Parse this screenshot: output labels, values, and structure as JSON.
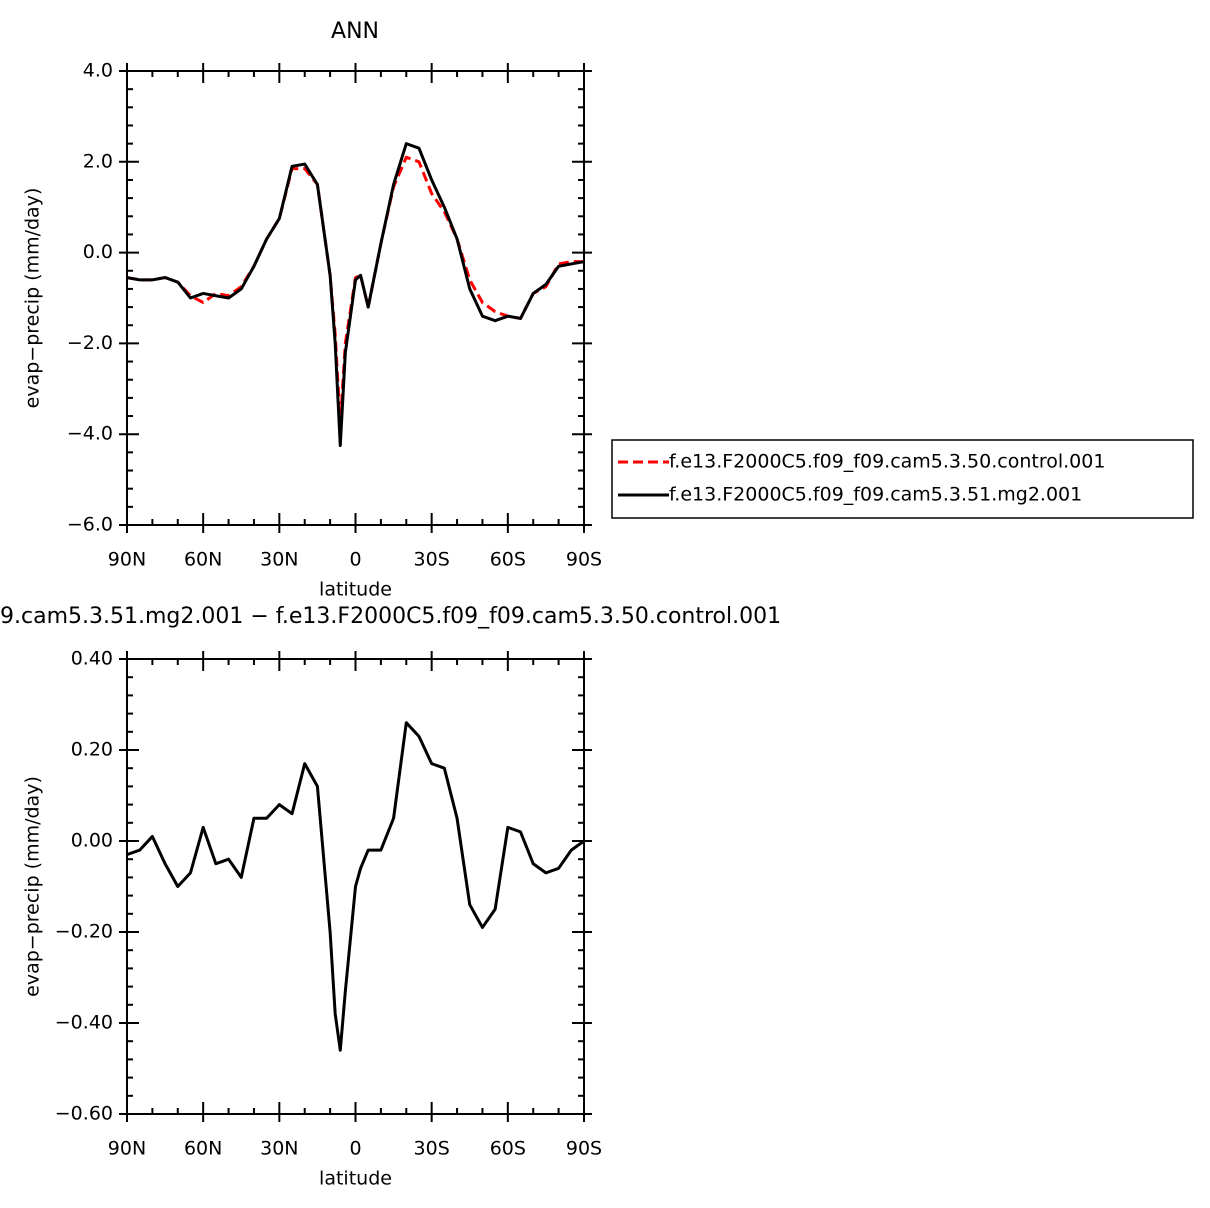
{
  "chart_data": [
    {
      "type": "line",
      "title": "ANN",
      "xlabel": "latitude",
      "ylabel": "evap−precip (mm/day)",
      "x": [
        90,
        85,
        80,
        75,
        70,
        65,
        60,
        55,
        50,
        45,
        40,
        35,
        30,
        25,
        20,
        15,
        10,
        8,
        6,
        4,
        0,
        -2,
        -5,
        -10,
        -15,
        -20,
        -25,
        -30,
        -35,
        -40,
        -45,
        -50,
        -55,
        -60,
        -65,
        -70,
        -75,
        -80,
        -85,
        -90
      ],
      "series": [
        {
          "name": "f.e13.F2000C5.f09_f09.cam5.3.50.control.001",
          "color": "#ff0000",
          "dash": "dashed",
          "values": [
            -0.55,
            -0.6,
            -0.6,
            -0.55,
            -0.65,
            -0.95,
            -1.1,
            -0.9,
            -0.95,
            -0.75,
            -0.3,
            0.3,
            0.75,
            1.85,
            1.85,
            1.5,
            -0.5,
            -1.8,
            -3.8,
            -2.0,
            -0.55,
            -0.5,
            -1.2,
            0.2,
            1.45,
            2.1,
            2.0,
            1.3,
            0.9,
            0.3,
            -0.6,
            -1.1,
            -1.3,
            -1.4,
            -1.45,
            -0.9,
            -0.75,
            -0.25,
            -0.2,
            -0.2
          ]
        },
        {
          "name": "f.e13.F2000C5.f09_f09.cam5.3.51.mg2.001",
          "color": "#000000",
          "dash": "solid",
          "values": [
            -0.55,
            -0.6,
            -0.6,
            -0.55,
            -0.65,
            -1.0,
            -0.9,
            -0.95,
            -1.0,
            -0.8,
            -0.3,
            0.3,
            0.75,
            1.9,
            1.95,
            1.5,
            -0.5,
            -2.0,
            -4.25,
            -2.2,
            -0.6,
            -0.5,
            -1.2,
            0.2,
            1.5,
            2.4,
            2.3,
            1.6,
            1.0,
            0.3,
            -0.8,
            -1.4,
            -1.5,
            -1.4,
            -1.45,
            -0.9,
            -0.7,
            -0.3,
            -0.25,
            -0.2
          ]
        }
      ],
      "xlim": [
        90,
        -90
      ],
      "xticks": [
        {
          "value": 90,
          "label": "90N"
        },
        {
          "value": 60,
          "label": "60N"
        },
        {
          "value": 30,
          "label": "30N"
        },
        0,
        {
          "value": -30,
          "label": "30S"
        },
        {
          "value": -60,
          "label": "60S"
        },
        {
          "value": -90,
          "label": "90S"
        }
      ],
      "ylim": [
        -6,
        4
      ],
      "yticks": [
        {
          "value": 4,
          "label": "4.0"
        },
        {
          "value": 2,
          "label": "2.0"
        },
        {
          "value": 0,
          "label": "0.0"
        },
        {
          "value": -2,
          "label": "−2.0"
        },
        {
          "value": -4,
          "label": "−4.0"
        },
        {
          "value": -6,
          "label": "−6.0"
        }
      ],
      "legend": "right"
    },
    {
      "type": "line",
      "title": "9.cam5.3.51.mg2.001  −  f.e13.F2000C5.f09_f09.cam5.3.50.control.001",
      "xlabel": "latitude",
      "ylabel": "evap−precip (mm/day)",
      "x": [
        90,
        85,
        80,
        75,
        70,
        65,
        60,
        55,
        50,
        45,
        40,
        35,
        30,
        25,
        20,
        15,
        10,
        8,
        6,
        4,
        0,
        -2,
        -5,
        -10,
        -15,
        -20,
        -25,
        -30,
        -35,
        -40,
        -45,
        -50,
        -55,
        -60,
        -65,
        -70,
        -75,
        -80,
        -85,
        -90
      ],
      "series": [
        {
          "color": "#000000",
          "dash": "solid",
          "values": [
            -0.03,
            -0.02,
            0.01,
            -0.05,
            -0.1,
            -0.07,
            0.03,
            -0.05,
            -0.04,
            -0.08,
            0.05,
            0.05,
            0.08,
            0.06,
            0.17,
            0.12,
            -0.2,
            -0.38,
            -0.46,
            -0.33,
            -0.1,
            -0.06,
            -0.02,
            -0.02,
            0.05,
            0.26,
            0.23,
            0.17,
            0.16,
            0.05,
            -0.14,
            -0.19,
            -0.15,
            0.03,
            0.02,
            -0.05,
            -0.07,
            -0.06,
            -0.02,
            0.0
          ]
        }
      ],
      "xlim": [
        90,
        -90
      ],
      "xticks": [
        {
          "value": 90,
          "label": "90N"
        },
        {
          "value": 60,
          "label": "60N"
        },
        {
          "value": 30,
          "label": "30N"
        },
        0,
        {
          "value": -30,
          "label": "30S"
        },
        {
          "value": -60,
          "label": "60S"
        },
        {
          "value": -90,
          "label": "90S"
        }
      ],
      "ylim": [
        -0.6,
        0.4
      ],
      "yticks": [
        {
          "value": 0.4,
          "label": "0.40"
        },
        {
          "value": 0.2,
          "label": "0.20"
        },
        {
          "value": 0,
          "label": "0.00"
        },
        {
          "value": -0.2,
          "label": "−0.20"
        },
        {
          "value": -0.4,
          "label": "−0.40"
        },
        {
          "value": -0.6,
          "label": "−0.60"
        }
      ]
    }
  ]
}
